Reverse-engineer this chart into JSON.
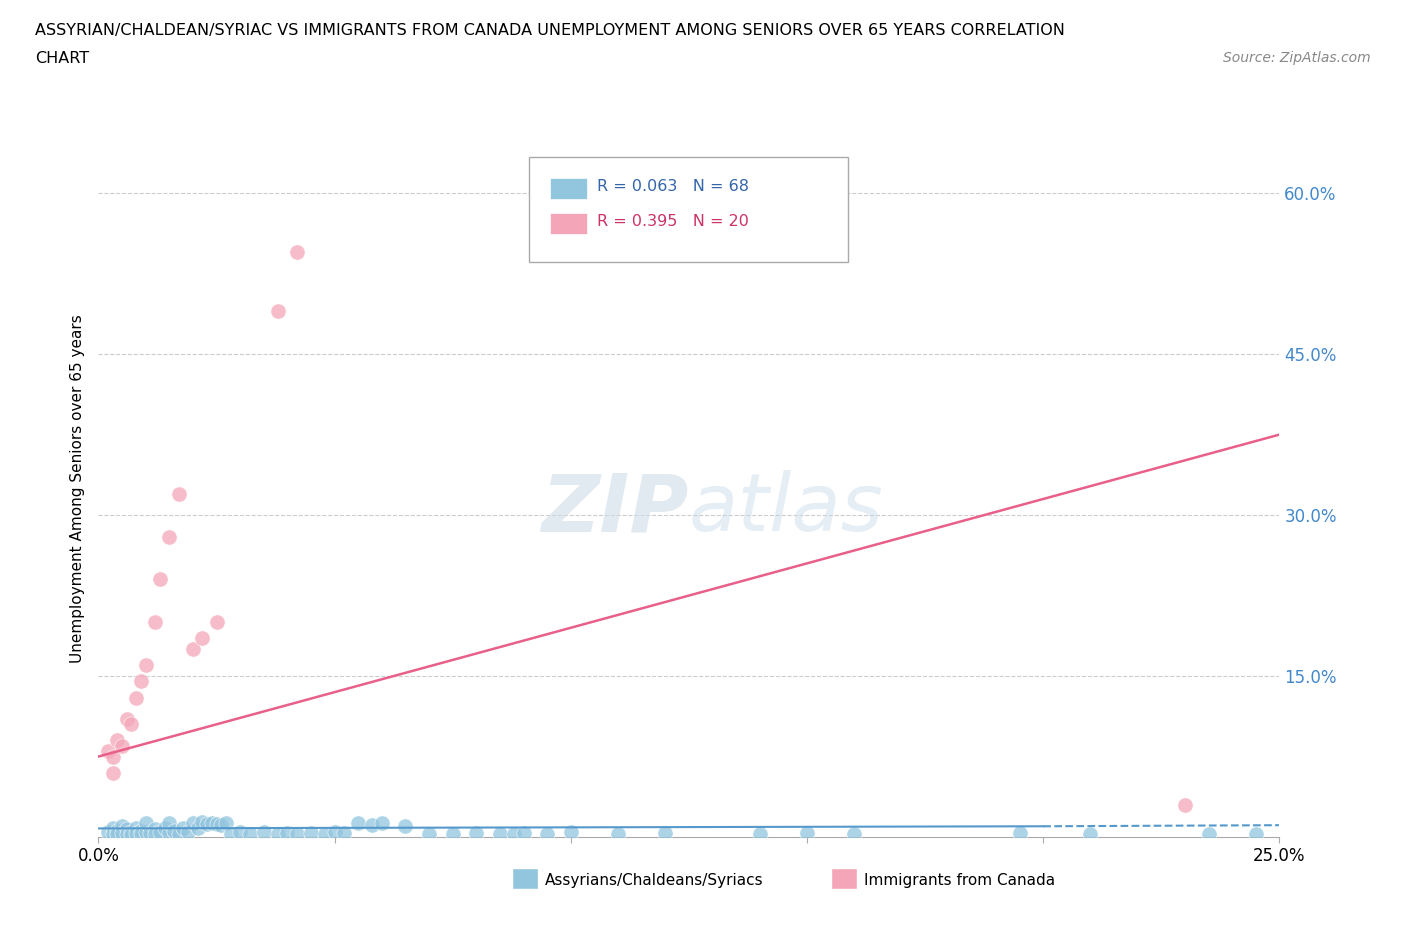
{
  "title_line1": "ASSYRIAN/CHALDEAN/SYRIAC VS IMMIGRANTS FROM CANADA UNEMPLOYMENT AMONG SENIORS OVER 65 YEARS CORRELATION",
  "title_line2": "CHART",
  "source_text": "Source: ZipAtlas.com",
  "ylabel": "Unemployment Among Seniors over 65 years",
  "xlim": [
    0.0,
    0.25
  ],
  "ylim": [
    0.0,
    0.65
  ],
  "x_ticks": [
    0.0,
    0.05,
    0.1,
    0.15,
    0.2,
    0.25
  ],
  "x_tick_labels": [
    "0.0%",
    "",
    "",
    "",
    "",
    "25.0%"
  ],
  "y_ticks": [
    0.0,
    0.15,
    0.3,
    0.45,
    0.6
  ],
  "y_tick_labels_right": [
    "",
    "15.0%",
    "30.0%",
    "45.0%",
    "60.0%"
  ],
  "grid_color": "#cccccc",
  "background_color": "#ffffff",
  "blue_color": "#92c5de",
  "pink_color": "#f4a6b8",
  "blue_line_color": "#5599cc",
  "pink_line_color": "#e8608a",
  "blue_scatter": [
    [
      0.002,
      0.005
    ],
    [
      0.003,
      0.008
    ],
    [
      0.003,
      0.003
    ],
    [
      0.004,
      0.006
    ],
    [
      0.004,
      0.003
    ],
    [
      0.005,
      0.01
    ],
    [
      0.005,
      0.004
    ],
    [
      0.006,
      0.007
    ],
    [
      0.006,
      0.003
    ],
    [
      0.007,
      0.005
    ],
    [
      0.007,
      0.002
    ],
    [
      0.008,
      0.008
    ],
    [
      0.008,
      0.004
    ],
    [
      0.009,
      0.006
    ],
    [
      0.009,
      0.003
    ],
    [
      0.01,
      0.005
    ],
    [
      0.01,
      0.013
    ],
    [
      0.011,
      0.004
    ],
    [
      0.012,
      0.007
    ],
    [
      0.012,
      0.003
    ],
    [
      0.013,
      0.005
    ],
    [
      0.014,
      0.008
    ],
    [
      0.015,
      0.004
    ],
    [
      0.015,
      0.013
    ],
    [
      0.016,
      0.006
    ],
    [
      0.017,
      0.003
    ],
    [
      0.018,
      0.008
    ],
    [
      0.019,
      0.005
    ],
    [
      0.02,
      0.013
    ],
    [
      0.021,
      0.008
    ],
    [
      0.022,
      0.014
    ],
    [
      0.023,
      0.012
    ],
    [
      0.024,
      0.013
    ],
    [
      0.025,
      0.012
    ],
    [
      0.026,
      0.011
    ],
    [
      0.027,
      0.013
    ],
    [
      0.028,
      0.003
    ],
    [
      0.03,
      0.005
    ],
    [
      0.032,
      0.003
    ],
    [
      0.035,
      0.005
    ],
    [
      0.038,
      0.003
    ],
    [
      0.04,
      0.004
    ],
    [
      0.042,
      0.003
    ],
    [
      0.045,
      0.004
    ],
    [
      0.048,
      0.003
    ],
    [
      0.05,
      0.005
    ],
    [
      0.052,
      0.004
    ],
    [
      0.055,
      0.013
    ],
    [
      0.058,
      0.011
    ],
    [
      0.06,
      0.013
    ],
    [
      0.065,
      0.01
    ],
    [
      0.07,
      0.003
    ],
    [
      0.075,
      0.003
    ],
    [
      0.08,
      0.004
    ],
    [
      0.085,
      0.003
    ],
    [
      0.088,
      0.003
    ],
    [
      0.09,
      0.004
    ],
    [
      0.095,
      0.003
    ],
    [
      0.1,
      0.005
    ],
    [
      0.11,
      0.003
    ],
    [
      0.12,
      0.004
    ],
    [
      0.14,
      0.003
    ],
    [
      0.15,
      0.004
    ],
    [
      0.16,
      0.003
    ],
    [
      0.195,
      0.004
    ],
    [
      0.21,
      0.003
    ],
    [
      0.235,
      0.003
    ],
    [
      0.245,
      0.003
    ]
  ],
  "pink_scatter": [
    [
      0.002,
      0.08
    ],
    [
      0.003,
      0.075
    ],
    [
      0.004,
      0.09
    ],
    [
      0.005,
      0.085
    ],
    [
      0.006,
      0.11
    ],
    [
      0.007,
      0.105
    ],
    [
      0.008,
      0.13
    ],
    [
      0.009,
      0.145
    ],
    [
      0.01,
      0.16
    ],
    [
      0.012,
      0.2
    ],
    [
      0.013,
      0.24
    ],
    [
      0.015,
      0.28
    ],
    [
      0.017,
      0.32
    ],
    [
      0.02,
      0.175
    ],
    [
      0.022,
      0.185
    ],
    [
      0.025,
      0.2
    ],
    [
      0.038,
      0.49
    ],
    [
      0.042,
      0.545
    ],
    [
      0.23,
      0.03
    ],
    [
      0.003,
      0.06
    ]
  ],
  "blue_trendline": [
    [
      0.0,
      0.008
    ],
    [
      0.2,
      0.01
    ],
    [
      0.25,
      0.011
    ]
  ],
  "blue_trendline_dashed": [
    [
      0.2,
      0.01
    ],
    [
      0.25,
      0.011
    ]
  ],
  "pink_trendline": [
    [
      0.0,
      0.075
    ],
    [
      0.25,
      0.375
    ]
  ]
}
